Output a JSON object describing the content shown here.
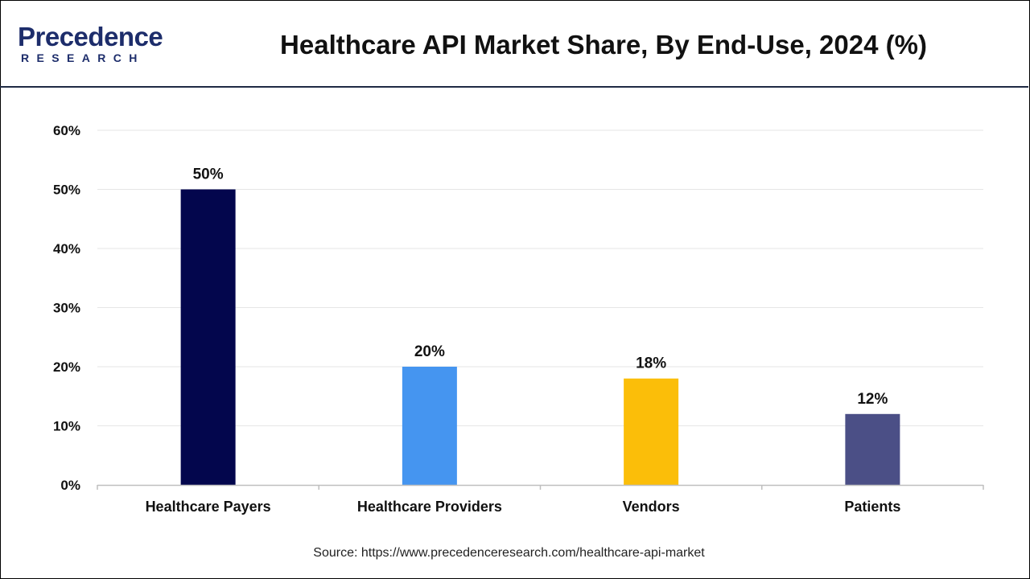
{
  "header": {
    "logo_word": "Precedence",
    "logo_sub": "RESEARCH"
  },
  "chart_data": {
    "type": "bar",
    "title": "Healthcare API Market Share, By End-Use, 2024 (%)",
    "categories": [
      "Healthcare Payers",
      "Healthcare Providers",
      "Vendors",
      "Patients"
    ],
    "values": [
      50,
      20,
      18,
      12
    ],
    "value_labels": [
      "50%",
      "20%",
      "18%",
      "12%"
    ],
    "colors": [
      "#03064d",
      "#4595f0",
      "#fbbe09",
      "#4b4f86"
    ],
    "ylim": [
      0,
      60
    ],
    "yticks": [
      0,
      10,
      20,
      30,
      40,
      50,
      60
    ],
    "ytick_labels": [
      "0%",
      "10%",
      "20%",
      "30%",
      "40%",
      "50%",
      "60%"
    ],
    "xlabel": "",
    "ylabel": "",
    "grid": true,
    "legend": "none"
  },
  "footer": {
    "source": "Source: https://www.precedenceresearch.com/healthcare-api-market"
  }
}
